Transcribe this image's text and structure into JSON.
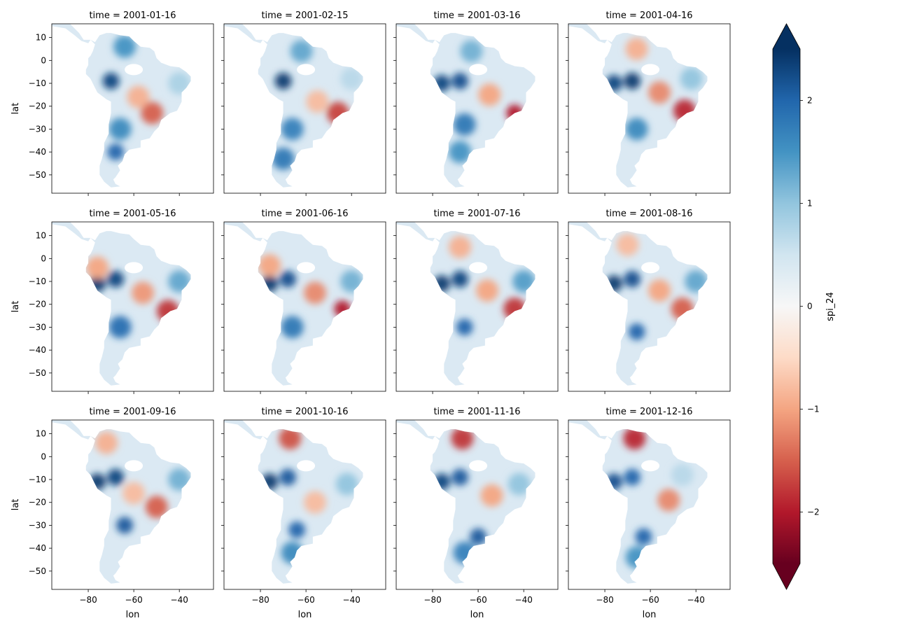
{
  "chart_data": {
    "type": "heatmap",
    "variable": "spi_24",
    "facet_title_prefix": "time = ",
    "xlabel": "lon",
    "ylabel": "lat",
    "xlim": [
      -96,
      -25
    ],
    "ylim": [
      -58,
      16
    ],
    "xticks": [
      -80,
      -60,
      -40
    ],
    "xtick_labels": [
      "−80",
      "−60",
      "−40"
    ],
    "yticks": [
      10,
      0,
      -10,
      -20,
      -30,
      -40,
      -50
    ],
    "ytick_labels": [
      "10",
      "0",
      "−10",
      "−20",
      "−30",
      "−40",
      "−50"
    ],
    "panels": [
      {
        "time": "2001-01-16",
        "anomalies": [
          {
            "lon": -70,
            "lat": -9,
            "value": 2.3
          },
          {
            "lon": -64,
            "lat": 6,
            "value": 1.5
          },
          {
            "lon": -52,
            "lat": -23,
            "value": -1.5
          },
          {
            "lon": -58,
            "lat": -16,
            "value": -0.9
          },
          {
            "lon": -66,
            "lat": -30,
            "value": 1.6
          },
          {
            "lon": -68,
            "lat": -40,
            "value": 2.0
          },
          {
            "lon": -40,
            "lat": -10,
            "value": 0.8
          }
        ]
      },
      {
        "time": "2001-02-15",
        "anomalies": [
          {
            "lon": -70,
            "lat": -9,
            "value": 2.4
          },
          {
            "lon": -62,
            "lat": 4,
            "value": 1.3
          },
          {
            "lon": -46,
            "lat": -23,
            "value": -1.7
          },
          {
            "lon": -55,
            "lat": -18,
            "value": -0.8
          },
          {
            "lon": -66,
            "lat": -30,
            "value": 1.7
          },
          {
            "lon": -70,
            "lat": -43,
            "value": 1.8
          },
          {
            "lon": -40,
            "lat": -8,
            "value": 0.7
          }
        ]
      },
      {
        "time": "2001-03-16",
        "anomalies": [
          {
            "lon": -76,
            "lat": -10,
            "value": 2.3
          },
          {
            "lon": -68,
            "lat": -9,
            "value": 2.2
          },
          {
            "lon": -44,
            "lat": -23,
            "value": -2.0
          },
          {
            "lon": -55,
            "lat": -15,
            "value": -1.0
          },
          {
            "lon": -66,
            "lat": -28,
            "value": 1.8
          },
          {
            "lon": -68,
            "lat": -40,
            "value": 1.5
          },
          {
            "lon": -63,
            "lat": 4,
            "value": 1.2
          }
        ]
      },
      {
        "time": "2001-04-16",
        "anomalies": [
          {
            "lon": -76,
            "lat": -10,
            "value": 2.3
          },
          {
            "lon": -68,
            "lat": -9,
            "value": 2.4
          },
          {
            "lon": -45,
            "lat": -22,
            "value": -1.9
          },
          {
            "lon": -56,
            "lat": -14,
            "value": -1.2
          },
          {
            "lon": -66,
            "lat": 5,
            "value": -0.9
          },
          {
            "lon": -66,
            "lat": -30,
            "value": 1.6
          },
          {
            "lon": -42,
            "lat": -8,
            "value": 1.0
          }
        ]
      },
      {
        "time": "2001-05-16",
        "anomalies": [
          {
            "lon": -76,
            "lat": -11,
            "value": 2.4
          },
          {
            "lon": -68,
            "lat": -9,
            "value": 2.3
          },
          {
            "lon": -45,
            "lat": -23,
            "value": -1.8
          },
          {
            "lon": -56,
            "lat": -15,
            "value": -1.1
          },
          {
            "lon": -76,
            "lat": -4,
            "value": -1.0
          },
          {
            "lon": -66,
            "lat": -30,
            "value": 1.9
          },
          {
            "lon": -40,
            "lat": -10,
            "value": 1.3
          }
        ]
      },
      {
        "time": "2001-06-16",
        "anomalies": [
          {
            "lon": -76,
            "lat": -11,
            "value": 2.4
          },
          {
            "lon": -68,
            "lat": -9,
            "value": 2.2
          },
          {
            "lon": -44,
            "lat": -22,
            "value": -2.0
          },
          {
            "lon": -56,
            "lat": -15,
            "value": -1.2
          },
          {
            "lon": -76,
            "lat": -3,
            "value": -1.0
          },
          {
            "lon": -66,
            "lat": -30,
            "value": 1.8
          },
          {
            "lon": -40,
            "lat": -10,
            "value": 1.2
          }
        ]
      },
      {
        "time": "2001-07-16",
        "anomalies": [
          {
            "lon": -76,
            "lat": -11,
            "value": 2.4
          },
          {
            "lon": -68,
            "lat": -9,
            "value": 2.3
          },
          {
            "lon": -44,
            "lat": -22,
            "value": -1.8
          },
          {
            "lon": -56,
            "lat": -14,
            "value": -1.0
          },
          {
            "lon": -68,
            "lat": 5,
            "value": -0.9
          },
          {
            "lon": -66,
            "lat": -30,
            "value": 2.0
          },
          {
            "lon": -40,
            "lat": -10,
            "value": 1.4
          }
        ]
      },
      {
        "time": "2001-08-16",
        "anomalies": [
          {
            "lon": -76,
            "lat": -11,
            "value": 2.4
          },
          {
            "lon": -68,
            "lat": -9,
            "value": 2.2
          },
          {
            "lon": -46,
            "lat": -22,
            "value": -1.5
          },
          {
            "lon": -56,
            "lat": -14,
            "value": -1.0
          },
          {
            "lon": -70,
            "lat": 6,
            "value": -0.8
          },
          {
            "lon": -66,
            "lat": -32,
            "value": 2.0
          },
          {
            "lon": -40,
            "lat": -10,
            "value": 1.3
          }
        ]
      },
      {
        "time": "2001-09-16",
        "anomalies": [
          {
            "lon": -76,
            "lat": -11,
            "value": 2.4
          },
          {
            "lon": -68,
            "lat": -9,
            "value": 2.3
          },
          {
            "lon": -50,
            "lat": -22,
            "value": -1.5
          },
          {
            "lon": -60,
            "lat": -16,
            "value": -0.8
          },
          {
            "lon": -72,
            "lat": 6,
            "value": -0.9
          },
          {
            "lon": -64,
            "lat": -30,
            "value": 2.1
          },
          {
            "lon": -40,
            "lat": -10,
            "value": 1.2
          }
        ]
      },
      {
        "time": "2001-10-16",
        "anomalies": [
          {
            "lon": -76,
            "lat": -11,
            "value": 2.4
          },
          {
            "lon": -68,
            "lat": -9,
            "value": 2.1
          },
          {
            "lon": -67,
            "lat": 8,
            "value": -1.6
          },
          {
            "lon": -56,
            "lat": -20,
            "value": -0.8
          },
          {
            "lon": -64,
            "lat": -32,
            "value": 2.0
          },
          {
            "lon": -66,
            "lat": -42,
            "value": 1.6
          },
          {
            "lon": -42,
            "lat": -12,
            "value": 1.0
          }
        ]
      },
      {
        "time": "2001-11-16",
        "anomalies": [
          {
            "lon": -76,
            "lat": -11,
            "value": 2.3
          },
          {
            "lon": -68,
            "lat": -9,
            "value": 2.1
          },
          {
            "lon": -67,
            "lat": 8,
            "value": -1.8
          },
          {
            "lon": -54,
            "lat": -17,
            "value": -1.0
          },
          {
            "lon": -60,
            "lat": -35,
            "value": 2.1
          },
          {
            "lon": -66,
            "lat": -42,
            "value": 1.7
          },
          {
            "lon": -42,
            "lat": -12,
            "value": 1.0
          }
        ]
      },
      {
        "time": "2001-12-16",
        "anomalies": [
          {
            "lon": -76,
            "lat": -11,
            "value": 2.2
          },
          {
            "lon": -68,
            "lat": -9,
            "value": 2.0
          },
          {
            "lon": -67,
            "lat": 8,
            "value": -1.9
          },
          {
            "lon": -52,
            "lat": -19,
            "value": -1.2
          },
          {
            "lon": -63,
            "lat": -35,
            "value": 2.0
          },
          {
            "lon": -66,
            "lat": -44,
            "value": 1.5
          },
          {
            "lon": -46,
            "lat": -8,
            "value": 0.7
          }
        ]
      }
    ],
    "colorbar": {
      "label": "spi_24",
      "cmap": "RdBu",
      "vmin": -2.5,
      "vmax": 2.5,
      "extend": "both",
      "ticks": [
        2,
        1,
        0,
        -1,
        -2
      ],
      "tick_labels": [
        "2",
        "1",
        "0",
        "−1",
        "−2"
      ]
    }
  }
}
